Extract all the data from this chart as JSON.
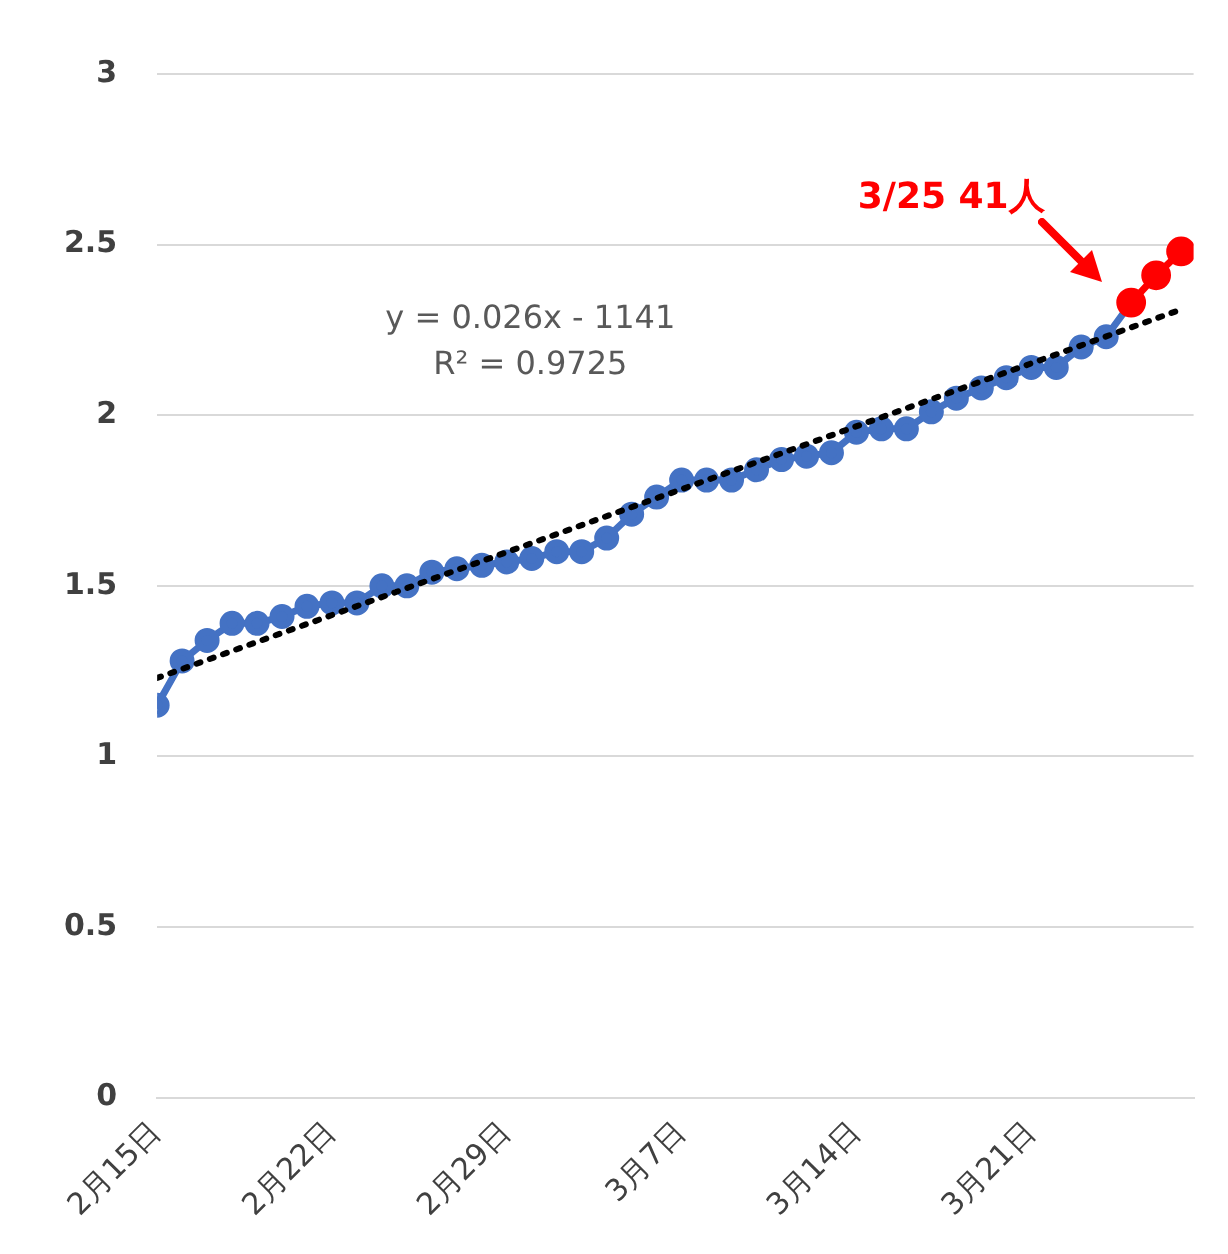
{
  "chart_data": {
    "type": "line",
    "xlim": [
      "--02-15",
      "--03-27T12:00"
    ],
    "xticks": [
      {
        "value": "--02-15",
        "label": "2月15日"
      },
      {
        "value": "--02-22",
        "label": "2月22日"
      },
      {
        "value": "--02-29",
        "label": "2月29日"
      },
      {
        "value": "--03-07",
        "label": "3月7日"
      },
      {
        "value": "--03-14",
        "label": "3月14日"
      },
      {
        "value": "--03-21",
        "label": "3月21日"
      }
    ],
    "ylim": [
      0,
      3
    ],
    "yticks": [
      0,
      0.5,
      1,
      1.5,
      2,
      2.5,
      3
    ],
    "grid": "y",
    "legend": false,
    "marker": "circle",
    "line_style": "solid",
    "series": [
      {
        "color": "#4472c4",
        "x": [
          "--02-15",
          "--02-16",
          "--02-17",
          "--02-18",
          "--02-19",
          "--02-20",
          "--02-21",
          "--02-22",
          "--02-23",
          "--02-24",
          "--02-25",
          "--02-26",
          "--02-27",
          "--02-28",
          "--02-29",
          "--03-01",
          "--03-02",
          "--03-03",
          "--03-04",
          "--03-05",
          "--03-06",
          "--03-07",
          "--03-08",
          "--03-09",
          "--03-10",
          "--03-11",
          "--03-12",
          "--03-13",
          "--03-14",
          "--03-15",
          "--03-16",
          "--03-17",
          "--03-18",
          "--03-19",
          "--03-20",
          "--03-21",
          "--03-22",
          "--03-23",
          "--03-24",
          "--03-25"
        ],
        "values": [
          1.15,
          1.28,
          1.34,
          1.39,
          1.39,
          1.41,
          1.44,
          1.45,
          1.45,
          1.5,
          1.5,
          1.54,
          1.55,
          1.56,
          1.57,
          1.58,
          1.6,
          1.6,
          1.64,
          1.71,
          1.76,
          1.81,
          1.81,
          1.81,
          1.84,
          1.87,
          1.88,
          1.89,
          1.95,
          1.96,
          1.96,
          2.01,
          2.05,
          2.08,
          2.11,
          2.14,
          2.14,
          2.2,
          2.23,
          2.33
        ]
      },
      {
        "color": "#ff0000",
        "x": [
          "--03-25",
          "--03-26",
          "--03-27"
        ],
        "values": [
          2.33,
          2.41,
          2.48
        ]
      },
      {
        "type": "line",
        "color": "#000000",
        "line_style": "dotted",
        "marker": "none",
        "x": [
          "--02-15",
          "--03-27"
        ],
        "values": [
          1.23,
          2.31
        ]
      }
    ],
    "annotations": [
      "y = 0.026x - 1141",
      "R² = 0.9725",
      "3/25 41人"
    ]
  }
}
